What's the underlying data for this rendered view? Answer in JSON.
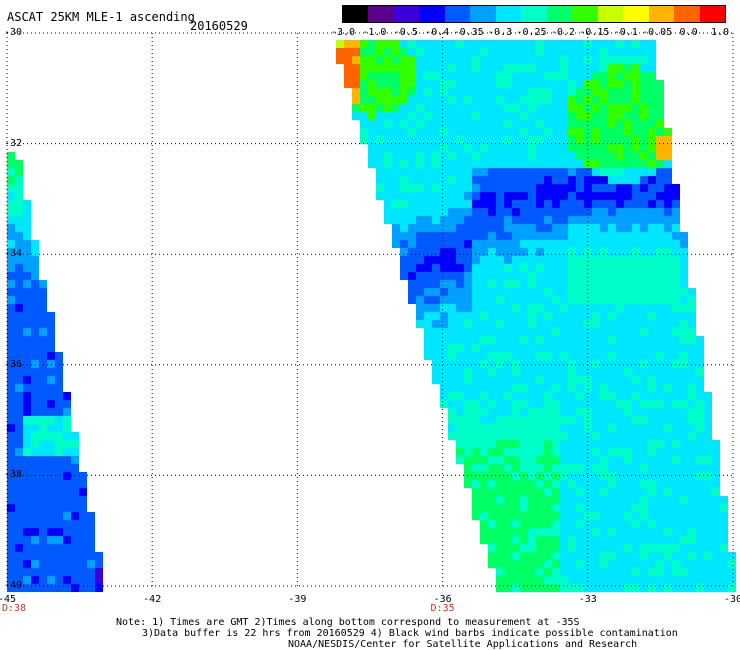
{
  "header": {
    "title": "ASCAT 25KM MLE-1 ascending",
    "date": "20160529"
  },
  "colorbar": {
    "labels": [
      "-3.0",
      "-1.0",
      "-0.5",
      "-0.4",
      "-0.35",
      "-0.3",
      "-0.25",
      "-0.2",
      "-0.15",
      "-0.1",
      "-0.05",
      "0.0",
      "1.0"
    ],
    "colors": [
      "#000000",
      "#5a008c",
      "#3c00dc",
      "#0000ff",
      "#005aff",
      "#00a0ff",
      "#00e6ff",
      "#00ffc8",
      "#00ff64",
      "#32ff00",
      "#c8ff00",
      "#ffff00",
      "#ffb400",
      "#ff6400",
      "#ff0000"
    ]
  },
  "axes": {
    "lat_labels": [
      "-30",
      "-32",
      "-34",
      "-36",
      "-38",
      "-40"
    ],
    "lon_labels": [
      "-45",
      "-42",
      "-39",
      "-36",
      "-33",
      "-30"
    ],
    "time_labels": [
      {
        "text": "D:38",
        "lon": "-45"
      },
      {
        "text": "D:35",
        "lon": "-36"
      }
    ]
  },
  "notes": {
    "line1": "Note: 1) Times are GMT 2)Times along bottom correspond to measurement at -35S",
    "line2": "3)Data buffer is 22 hrs from 20160529 4) Black wind barbs indicate possible contamination",
    "line3": "NOAA/NESDIS/Center for Satellite Applications and Research"
  }
}
